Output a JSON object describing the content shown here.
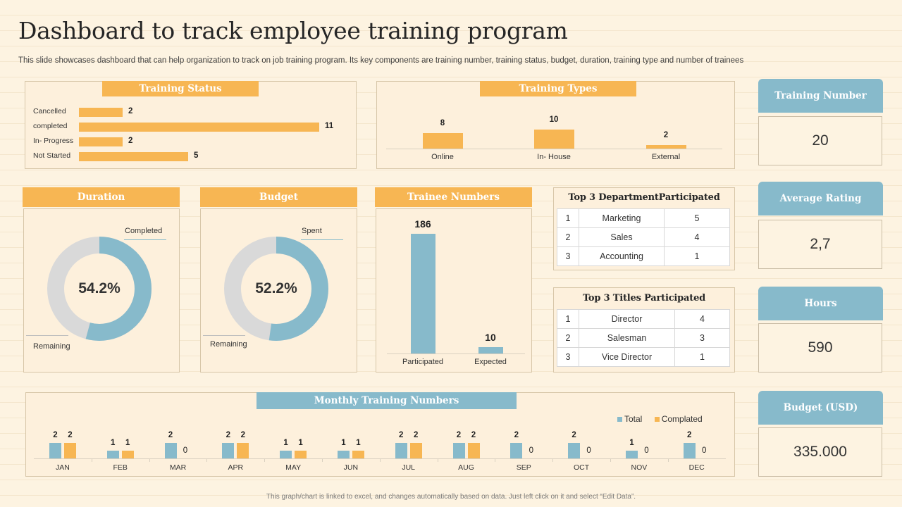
{
  "page": {
    "title": "Dashboard to track employee training program",
    "subtitle": "This slide showcases dashboard that can help organization to track on job training program. Its key components are training number, training status, budget, duration, training type and number of trainees",
    "footer": "This graph/chart is linked to excel, and changes automatically based on data. Just left click on it and select “Edit Data”."
  },
  "colors": {
    "orange": "#f7b653",
    "blue": "#87bacb",
    "gray": "#d9d9d9"
  },
  "kpis": [
    {
      "label": "Training Number",
      "value": "20"
    },
    {
      "label": "Average Rating",
      "value": "2,7"
    },
    {
      "label": "Hours",
      "value": "590"
    },
    {
      "label": "Budget (USD)",
      "value": "335.000"
    }
  ],
  "dept_table": {
    "title": "Top 3 DepartmentParticipated",
    "rows": [
      [
        "1",
        "Marketing",
        "5"
      ],
      [
        "2",
        "Sales",
        "4"
      ],
      [
        "3",
        "Accounting",
        "1"
      ]
    ]
  },
  "titles_table": {
    "title": "Top 3 Titles Participated",
    "rows": [
      [
        "1",
        "Director",
        "4"
      ],
      [
        "2",
        "Salesman",
        "3"
      ],
      [
        "3",
        "Vice Director",
        "1"
      ]
    ]
  },
  "chart_data": [
    {
      "id": "training_status",
      "type": "bar",
      "orientation": "horizontal",
      "title": "Training Status",
      "categories": [
        "Cancelled",
        "completed",
        "In- Progress",
        "Not Started"
      ],
      "values": [
        2,
        11,
        2,
        5
      ]
    },
    {
      "id": "training_types",
      "type": "bar",
      "title": "Training Types",
      "categories": [
        "Online",
        "In- House",
        "External"
      ],
      "values": [
        8,
        10,
        2
      ]
    },
    {
      "id": "duration",
      "type": "pie",
      "subtype": "donut",
      "title": "Duration",
      "center_label": "54.2%",
      "slices": [
        {
          "name": "Completed",
          "value": 54.2
        },
        {
          "name": "Remaining",
          "value": 45.8
        }
      ]
    },
    {
      "id": "budget",
      "type": "pie",
      "subtype": "donut",
      "title": "Budget",
      "center_label": "52.2%",
      "slices": [
        {
          "name": "Spent",
          "value": 52.2
        },
        {
          "name": "Remaining",
          "value": 47.8
        }
      ]
    },
    {
      "id": "trainee_numbers",
      "type": "bar",
      "title": "Trainee Numbers",
      "categories": [
        "Participated",
        "Expected"
      ],
      "values": [
        186,
        10
      ]
    },
    {
      "id": "monthly",
      "type": "bar",
      "title": "Monthly Training Numbers",
      "legend_position": "top-right",
      "categories": [
        "JAN",
        "FEB",
        "MAR",
        "APR",
        "MAY",
        "JUN",
        "JUL",
        "AUG",
        "SEP",
        "OCT",
        "NOV",
        "DEC"
      ],
      "series": [
        {
          "name": "Total",
          "values": [
            2,
            1,
            2,
            2,
            1,
            1,
            2,
            2,
            2,
            2,
            1,
            2
          ]
        },
        {
          "name": "Complated",
          "values": [
            2,
            1,
            0,
            2,
            1,
            1,
            2,
            2,
            0,
            0,
            0,
            0
          ]
        }
      ]
    }
  ]
}
